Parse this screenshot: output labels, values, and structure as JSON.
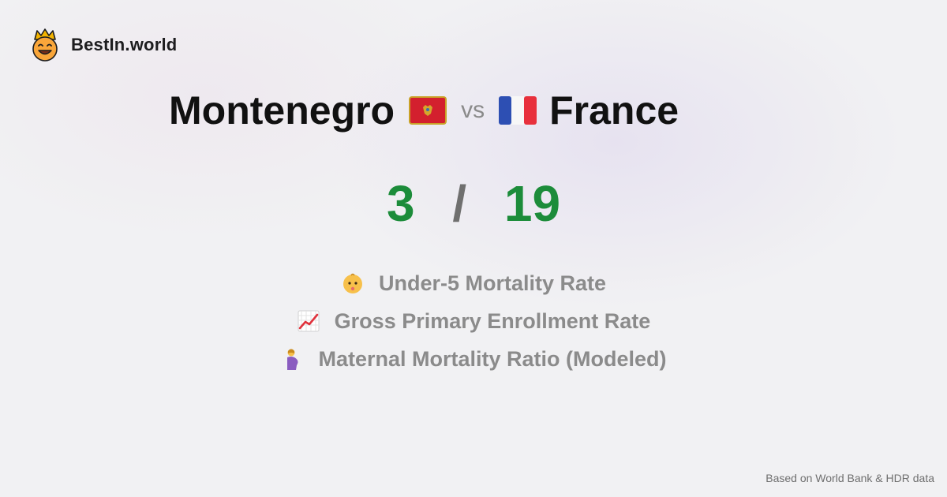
{
  "brand": {
    "name": "BestIn.world",
    "logo_icon": "smiling-crown-face-icon"
  },
  "comparison": {
    "left_country": "Montenegro",
    "left_flag_icon": "montenegro-flag-icon",
    "vs_label": "vs",
    "right_country": "France",
    "right_flag_icon": "france-flag-icon"
  },
  "score": {
    "left": "3",
    "separator": "/",
    "right": "19",
    "color": "#1c8c3a"
  },
  "metrics": [
    {
      "icon": "baby-face-icon",
      "label": "Under-5 Mortality Rate"
    },
    {
      "icon": "chart-increasing-icon",
      "label": "Gross Primary Enrollment Rate"
    },
    {
      "icon": "pregnant-woman-icon",
      "label": "Maternal Mortality Ratio (Modeled)"
    }
  ],
  "footer": {
    "source_note": "Based on World Bank & HDR data"
  }
}
